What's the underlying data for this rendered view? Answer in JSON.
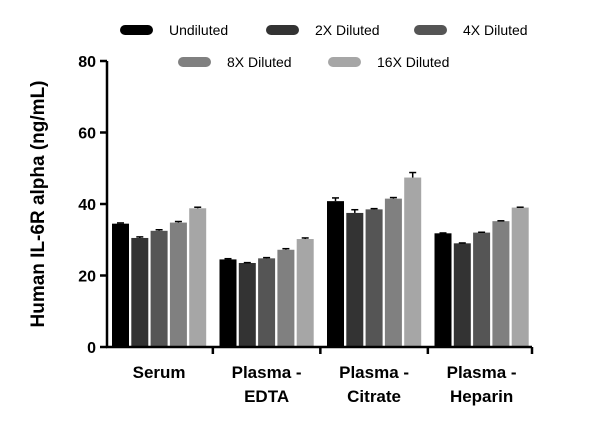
{
  "chart_data": {
    "type": "bar",
    "title": "",
    "xlabel": "",
    "ylabel": "Human IL-6R alpha (ng/mL)",
    "ylim": [
      0,
      80
    ],
    "yticks": [
      0,
      20,
      40,
      60,
      80
    ],
    "grid": false,
    "legend_position": "top",
    "categories": [
      {
        "line1": "Serum",
        "line2": ""
      },
      {
        "line1": "Plasma -",
        "line2": "EDTA"
      },
      {
        "line1": "Plasma -",
        "line2": "Citrate"
      },
      {
        "line1": "Plasma -",
        "line2": "Heparin"
      }
    ],
    "series": [
      {
        "name": "Undiluted",
        "color": "#000000",
        "values": [
          34.5,
          24.5,
          40.8,
          31.8
        ],
        "errors": [
          0.2,
          0.2,
          0.9,
          0.1
        ]
      },
      {
        "name": "2X Diluted",
        "color": "#333333",
        "values": [
          30.5,
          23.5,
          37.5,
          29.0
        ],
        "errors": [
          0.3,
          0.1,
          0.9,
          0.1
        ]
      },
      {
        "name": "4X Diluted",
        "color": "#555555",
        "values": [
          32.5,
          24.8,
          38.5,
          32.0
        ],
        "errors": [
          0.3,
          0.2,
          0.2,
          0.1
        ]
      },
      {
        "name": "8X Diluted",
        "color": "#808080",
        "values": [
          34.8,
          27.2,
          41.5,
          35.2
        ],
        "errors": [
          0.3,
          0.3,
          0.3,
          0.1
        ]
      },
      {
        "name": "16X Diluted",
        "color": "#a6a6a6",
        "values": [
          38.8,
          30.2,
          47.4,
          39.0
        ],
        "errors": [
          0.3,
          0.3,
          1.4,
          0.1
        ]
      }
    ]
  }
}
